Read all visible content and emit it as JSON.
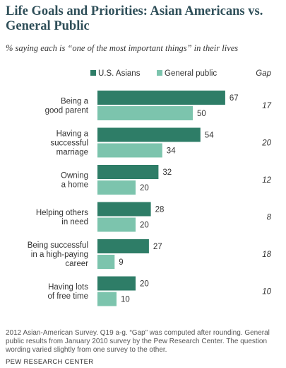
{
  "title": "Life Goals and Priorities: Asian Americans vs. General Public",
  "subtitle": "% saying each is “one of the most important things” in their lives",
  "gap_header": "Gap",
  "footnote": "2012 Asian-American Survey. Q19 a-g. “Gap” was computed after rounding. General public results from January 2010 survey by the Pew Research Center. The question wording varied slightly from one survey to the other.",
  "source": "PEW RESEARCH CENTER",
  "chart_data": {
    "type": "bar",
    "orientation": "horizontal",
    "categories": [
      [
        "Being a",
        "good parent"
      ],
      [
        "Having a",
        "successful",
        "marriage"
      ],
      [
        "Owning",
        "a home"
      ],
      [
        "Helping others",
        "in need"
      ],
      [
        "Being successful",
        "in a high-paying",
        "career"
      ],
      [
        "Having lots",
        "of free time"
      ]
    ],
    "series": [
      {
        "name": "U.S. Asians",
        "color": "#2e7d67",
        "values": [
          67,
          54,
          32,
          28,
          27,
          20
        ]
      },
      {
        "name": "General public",
        "color": "#7cc4ad",
        "values": [
          50,
          34,
          20,
          20,
          9,
          10
        ]
      }
    ],
    "gap": [
      "17",
      "20",
      "12",
      "8",
      "18",
      "10"
    ],
    "legend_position": "top",
    "data_labels": true,
    "grid": false
  }
}
